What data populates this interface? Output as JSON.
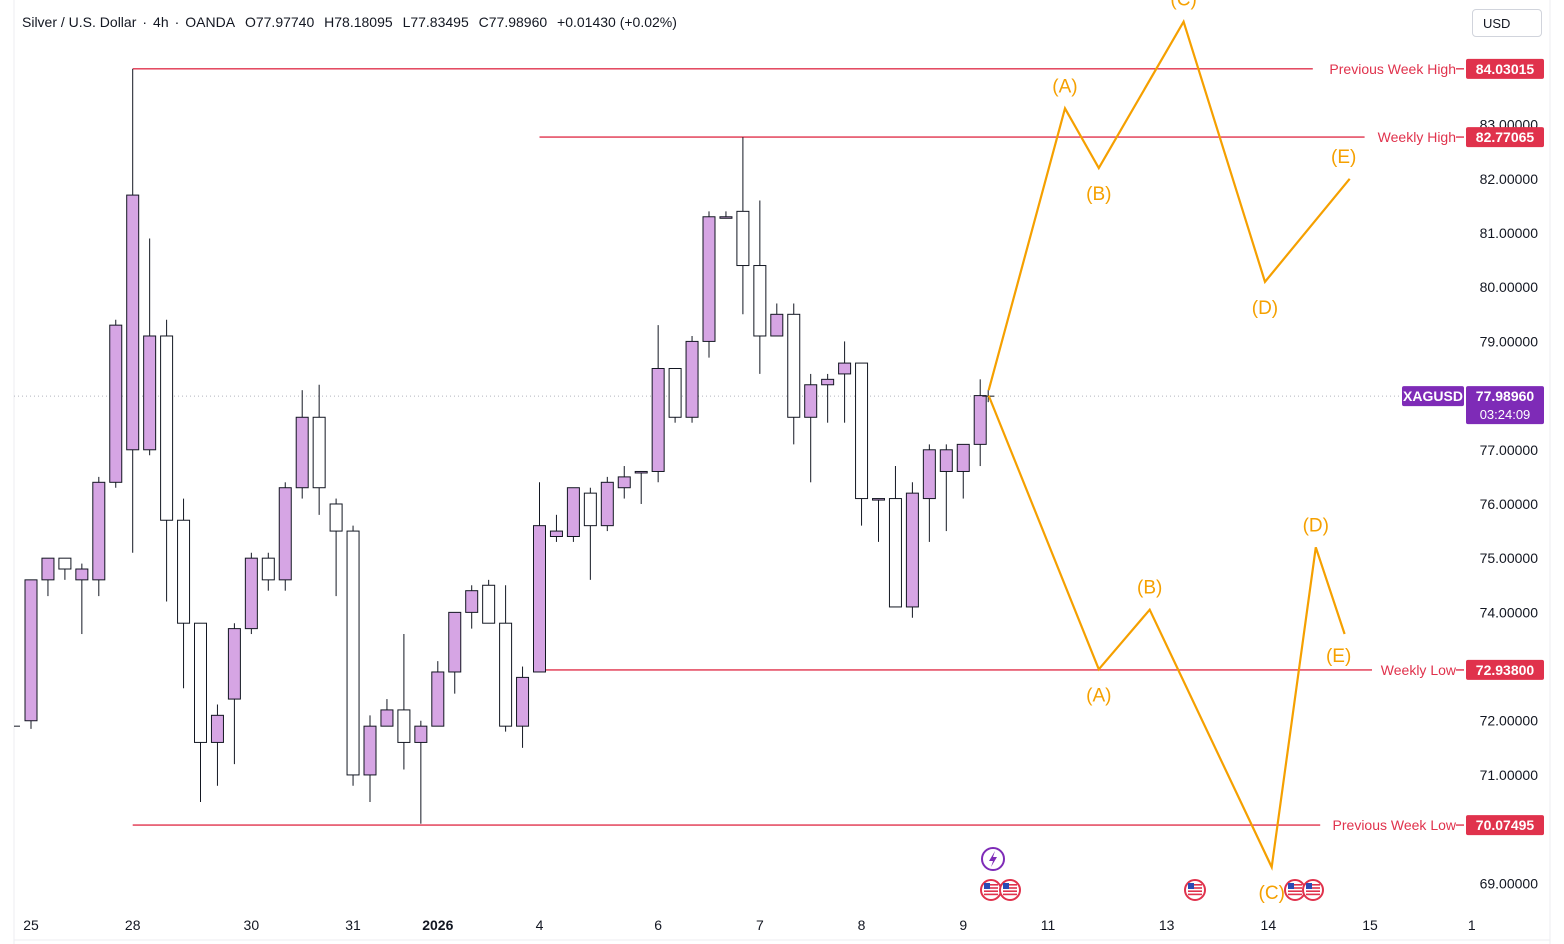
{
  "header": {
    "symbol": "Silver / U.S. Dollar",
    "interval": "4h",
    "exchange": "OANDA",
    "open": "O77.97740",
    "high": "H78.18095",
    "low": "L77.83495",
    "close": "C77.98960",
    "change": "+0.01430 (+0.02%)"
  },
  "currency_button": "USD",
  "colors": {
    "up_candle": "#d6a5e4",
    "down_candle": "#ffffff",
    "level_line": "#e0324c",
    "projection": "#f5a000",
    "price_tag": "#7e2bb7"
  },
  "chart_data": {
    "type": "candlestick",
    "ylim": [
      68.6,
      85.3
    ],
    "y_ticks": [
      "69.00000",
      "71.00000",
      "72.00000",
      "74.00000",
      "75.00000",
      "76.00000",
      "77.00000",
      "79.00000",
      "80.00000",
      "81.00000",
      "82.00000",
      "83.00000"
    ],
    "x_ticks": [
      {
        "label": "25",
        "bar": 0
      },
      {
        "label": "28",
        "bar": 6
      },
      {
        "label": "30",
        "bar": 13
      },
      {
        "label": "31",
        "bar": 19
      },
      {
        "label": "2026",
        "bar": 24,
        "bold": true
      },
      {
        "label": "4",
        "bar": 30
      },
      {
        "label": "6",
        "bar": 37
      },
      {
        "label": "7",
        "bar": 43
      },
      {
        "label": "8",
        "bar": 49
      },
      {
        "label": "9",
        "bar": 55
      },
      {
        "label": "11",
        "bar": 60
      },
      {
        "label": "13",
        "bar": 67
      },
      {
        "label": "14",
        "bar": 73
      },
      {
        "label": "15",
        "bar": 79
      },
      {
        "label": "1",
        "bar": 85
      }
    ],
    "candles": [
      [
        72.0,
        74.6,
        71.85,
        74.6
      ],
      [
        74.6,
        75.0,
        74.3,
        75.0
      ],
      [
        75.0,
        75.0,
        74.6,
        74.8
      ],
      [
        74.6,
        74.9,
        73.6,
        74.8
      ],
      [
        74.6,
        76.5,
        74.3,
        76.4
      ],
      [
        76.4,
        79.4,
        76.3,
        79.3
      ],
      [
        77.0,
        84.03,
        75.1,
        81.7
      ],
      [
        77.0,
        80.9,
        76.9,
        79.1
      ],
      [
        79.1,
        79.4,
        74.2,
        75.7
      ],
      [
        75.7,
        76.1,
        72.6,
        73.8
      ],
      [
        73.8,
        73.8,
        70.5,
        71.6
      ],
      [
        71.6,
        72.3,
        70.8,
        72.1
      ],
      [
        72.4,
        73.8,
        71.2,
        73.7
      ],
      [
        73.7,
        75.1,
        73.6,
        75.0
      ],
      [
        75.0,
        75.1,
        74.4,
        74.6
      ],
      [
        74.6,
        76.4,
        74.4,
        76.3
      ],
      [
        76.3,
        78.1,
        76.1,
        77.6
      ],
      [
        77.6,
        78.2,
        75.8,
        76.3
      ],
      [
        76.0,
        76.1,
        74.3,
        75.5
      ],
      [
        75.5,
        75.6,
        70.8,
        71.0
      ],
      [
        71.0,
        72.1,
        70.5,
        71.9
      ],
      [
        71.9,
        72.4,
        71.9,
        72.2
      ],
      [
        72.2,
        73.6,
        71.1,
        71.6
      ],
      [
        71.6,
        72.0,
        70.1,
        71.9
      ],
      [
        71.9,
        73.1,
        71.9,
        72.9
      ],
      [
        72.9,
        74.0,
        72.5,
        74.0
      ],
      [
        74.0,
        74.5,
        73.7,
        74.4
      ],
      [
        74.5,
        74.6,
        73.8,
        73.8
      ],
      [
        73.8,
        74.5,
        71.8,
        71.9
      ],
      [
        71.9,
        73.0,
        71.5,
        72.8
      ],
      [
        72.9,
        76.4,
        72.9,
        75.6
      ],
      [
        75.4,
        75.8,
        75.3,
        75.5
      ],
      [
        75.4,
        76.3,
        75.3,
        76.3
      ],
      [
        76.2,
        76.3,
        74.6,
        75.6
      ],
      [
        75.6,
        76.5,
        75.5,
        76.4
      ],
      [
        76.3,
        76.7,
        76.1,
        76.5
      ],
      [
        76.6,
        76.6,
        76.0,
        76.6
      ],
      [
        76.6,
        79.3,
        76.4,
        78.5
      ],
      [
        78.5,
        78.5,
        77.5,
        77.6
      ],
      [
        77.6,
        79.1,
        77.5,
        79.0
      ],
      [
        79.0,
        81.4,
        78.7,
        81.3
      ],
      [
        81.3,
        81.4,
        81.3,
        81.3
      ],
      [
        81.4,
        82.77,
        79.5,
        80.4
      ],
      [
        80.4,
        81.6,
        78.4,
        79.1
      ],
      [
        79.1,
        79.7,
        79.1,
        79.5
      ],
      [
        79.5,
        79.7,
        77.1,
        77.6
      ],
      [
        77.6,
        78.4,
        76.4,
        78.2
      ],
      [
        78.2,
        78.4,
        77.5,
        78.3
      ],
      [
        78.4,
        79.0,
        77.5,
        78.6
      ],
      [
        78.6,
        78.6,
        75.6,
        76.1
      ],
      [
        76.1,
        76.1,
        75.3,
        76.1
      ],
      [
        76.1,
        76.7,
        74.1,
        74.1
      ],
      [
        74.1,
        76.4,
        73.9,
        76.2
      ],
      [
        76.1,
        77.1,
        75.3,
        77.0
      ],
      [
        76.6,
        77.1,
        75.5,
        77.0
      ],
      [
        76.6,
        77.1,
        76.1,
        77.1
      ],
      [
        77.1,
        78.3,
        76.7,
        78.0
      ]
    ],
    "levels": [
      {
        "label": "Previous Week High",
        "value": 84.03015,
        "tag": "84.03015",
        "from_bar": 6
      },
      {
        "label": "Weekly High",
        "value": 82.77065,
        "tag": "82.77065",
        "from_bar": 30
      },
      {
        "label": "Weekly Low",
        "value": 72.938,
        "tag": "72.93800",
        "from_bar": 30
      },
      {
        "label": "Previous Week Low",
        "value": 70.07495,
        "tag": "70.07495",
        "from_bar": 6
      }
    ],
    "current_price": {
      "symbol": "XAGUSD",
      "value": 77.9896,
      "tag": "77.98960",
      "countdown": "03:24:09"
    },
    "projections": [
      {
        "name": "bullish",
        "points": [
          {
            "bar": 56.5,
            "y": 78.1,
            "label": ""
          },
          {
            "bar": 61.0,
            "y": 83.3,
            "label": "(A)",
            "label_pos": "above"
          },
          {
            "bar": 63.0,
            "y": 82.2,
            "label": "(B)",
            "label_pos": "below"
          },
          {
            "bar": 68.0,
            "y": 84.9,
            "label": "(C)",
            "label_pos": "above"
          },
          {
            "bar": 72.8,
            "y": 80.1,
            "label": "(D)",
            "label_pos": "below"
          },
          {
            "bar": 77.8,
            "y": 82.0,
            "label": "(E)",
            "label_pos": "above-left"
          }
        ]
      },
      {
        "name": "bearish",
        "points": [
          {
            "bar": 56.5,
            "y": 78.0,
            "label": ""
          },
          {
            "bar": 63.0,
            "y": 72.95,
            "label": "(A)",
            "label_pos": "below"
          },
          {
            "bar": 66.0,
            "y": 74.05,
            "label": "(B)",
            "label_pos": "above"
          },
          {
            "bar": 73.2,
            "y": 69.3,
            "label": "(C)",
            "label_pos": "below"
          },
          {
            "bar": 75.8,
            "y": 75.2,
            "label": "(D)",
            "label_pos": "above"
          },
          {
            "bar": 77.5,
            "y": 73.6,
            "label": "(E)",
            "label_pos": "below-left"
          }
        ]
      }
    ]
  }
}
